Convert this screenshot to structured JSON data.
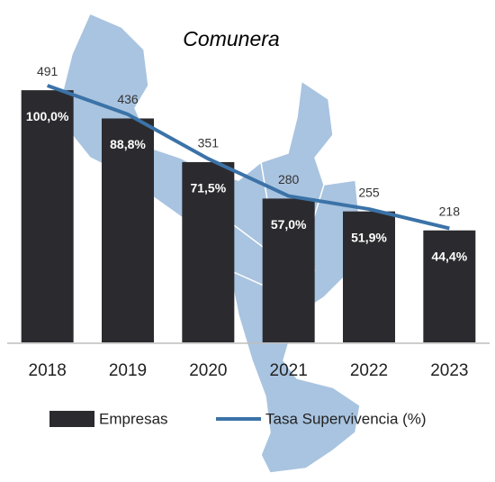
{
  "chart_data": {
    "type": "bar",
    "title": "Comunera",
    "categories": [
      "2018",
      "2019",
      "2020",
      "2021",
      "2022",
      "2023"
    ],
    "series": [
      {
        "name": "Empresas",
        "type": "bar",
        "color": "#2b2b2f",
        "values": [
          491,
          436,
          351,
          280,
          255,
          218
        ]
      },
      {
        "name": "Tasa Supervivencia (%)",
        "type": "line",
        "axis": "y2",
        "color": "#3b73a8",
        "values": [
          100.0,
          88.8,
          71.5,
          57.0,
          51.9,
          44.4
        ],
        "value_labels": [
          "100,0%",
          "88,8%",
          "71,5%",
          "57,0%",
          "51,9%",
          "44,4%"
        ]
      }
    ],
    "ylim": [
      0,
      600
    ],
    "y2lim": [
      0,
      120
    ],
    "legend": "bottom"
  }
}
